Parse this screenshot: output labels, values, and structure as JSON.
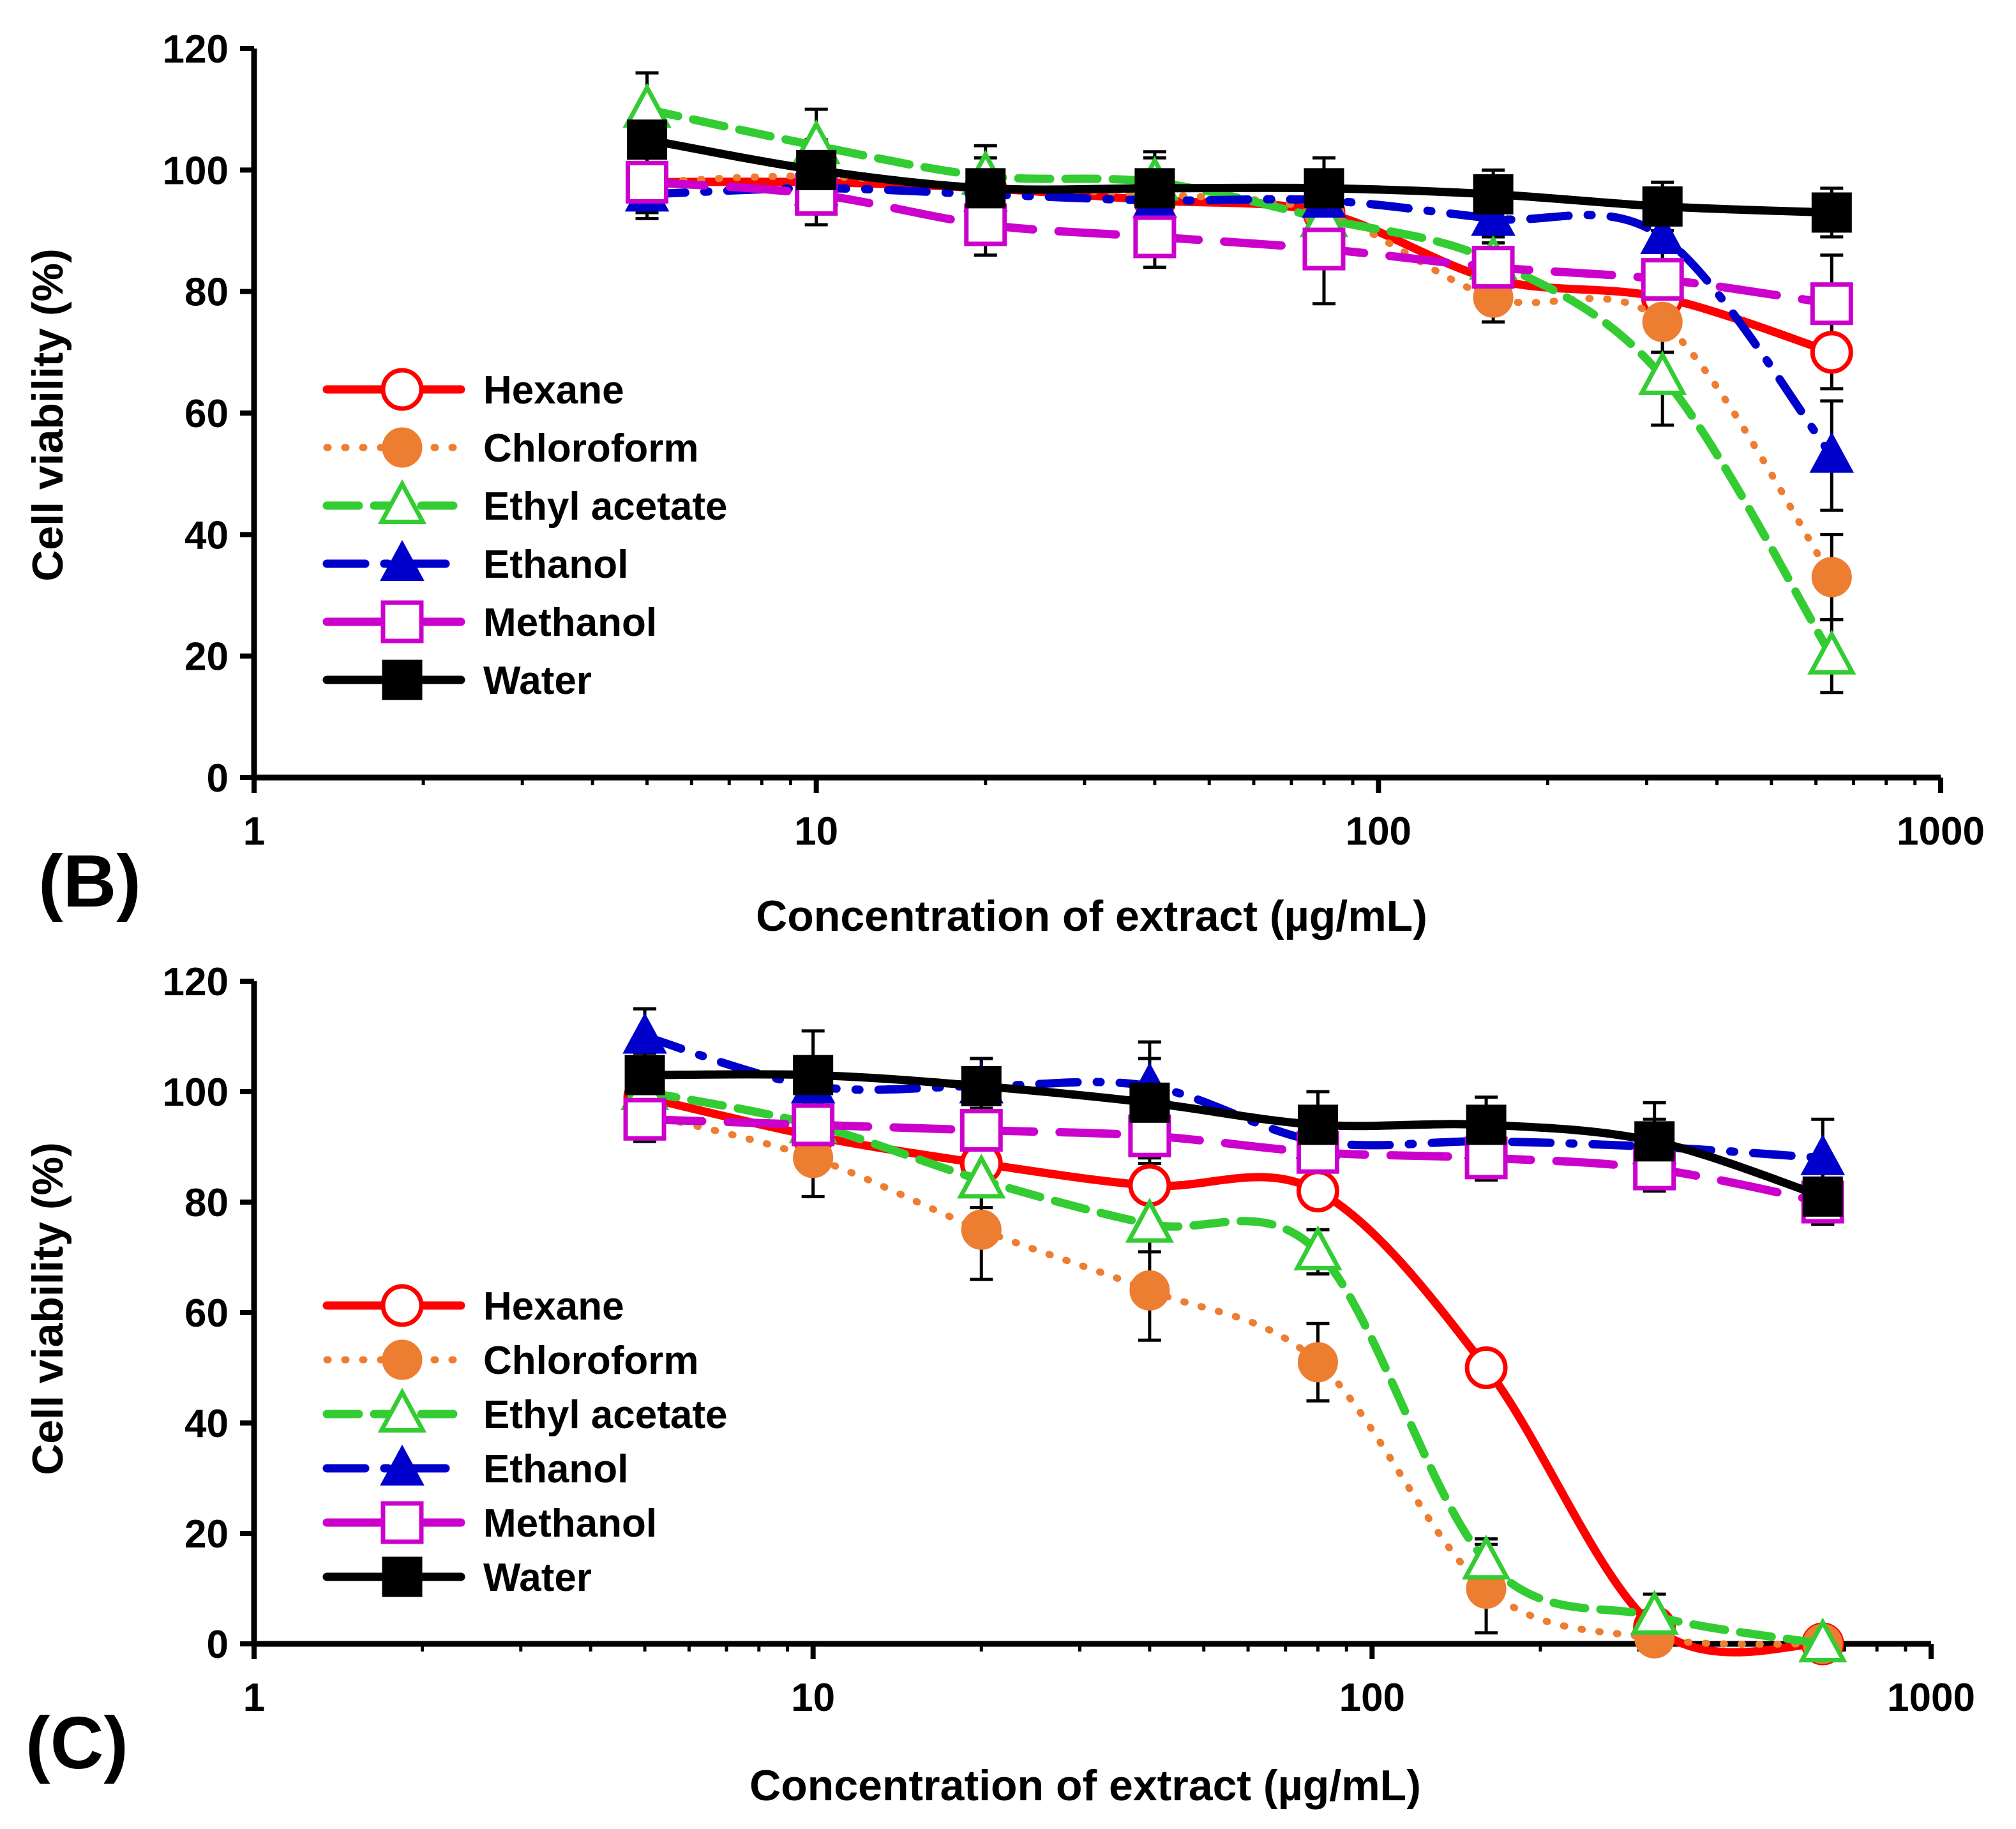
{
  "chart_data": [
    {
      "type": "line",
      "panel_label": "(B)",
      "xlabel": "Concentration of extract (µg/mL)",
      "ylabel": "Cell viability (%)",
      "xscale": "log",
      "xlim": [
        1,
        1000
      ],
      "ylim": [
        0,
        120
      ],
      "xticks": [
        "1",
        "10",
        "100",
        "1000"
      ],
      "yticks": [
        "0",
        "20",
        "40",
        "60",
        "80",
        "100",
        "120"
      ],
      "legend_position": "center-left",
      "x": [
        5,
        10,
        20,
        40,
        80,
        160,
        320,
        640
      ],
      "series": [
        {
          "name": "Hexane",
          "values": [
            98,
            98,
            97,
            95,
            93,
            82,
            79,
            70
          ],
          "errors": [
            3,
            3,
            3,
            3,
            3,
            4,
            4,
            6
          ],
          "color": "#ff0000",
          "marker": "circle-open",
          "dash": "solid"
        },
        {
          "name": "Chloroform",
          "values": [
            98,
            99,
            97,
            96,
            93,
            79,
            75,
            33
          ],
          "errors": [
            3,
            3,
            3,
            3,
            3,
            4,
            5,
            7
          ],
          "color": "#ed7d31",
          "marker": "circle-filled",
          "dash": "dotted"
        },
        {
          "name": "Ethyl acetate",
          "values": [
            110,
            104,
            99,
            98,
            92,
            85,
            66,
            20
          ],
          "errors": [
            6,
            6,
            5,
            5,
            5,
            5,
            8,
            6
          ],
          "color": "#33cc33",
          "marker": "triangle-open",
          "dash": "dashed"
        },
        {
          "name": "Ethanol",
          "values": [
            96,
            97,
            96,
            95,
            95,
            92,
            89,
            53
          ],
          "errors": [
            4,
            4,
            4,
            4,
            4,
            4,
            5,
            9
          ],
          "color": "#0000cc",
          "marker": "triangle-filled",
          "dash": "dashdot"
        },
        {
          "name": "Methanol",
          "values": [
            98,
            96,
            91,
            89,
            87,
            84,
            82,
            78
          ],
          "errors": [
            5,
            5,
            5,
            5,
            9,
            5,
            5,
            8
          ],
          "color": "#cc00cc",
          "marker": "square-open",
          "dash": "longdash"
        },
        {
          "name": "Water",
          "values": [
            105,
            100,
            97,
            97,
            97,
            96,
            94,
            93
          ],
          "errors": [
            5,
            5,
            5,
            5,
            5,
            4,
            4,
            4
          ],
          "color": "#000000",
          "marker": "square-filled",
          "dash": "solid"
        }
      ]
    },
    {
      "type": "line",
      "panel_label": "(C)",
      "xlabel": "Concentration of extract (µg/mL)",
      "ylabel": "Cell viability (%)",
      "xscale": "log",
      "xlim": [
        1,
        1000
      ],
      "ylim": [
        0,
        120
      ],
      "xticks": [
        "1",
        "10",
        "100",
        "1000"
      ],
      "yticks": [
        "0",
        "20",
        "40",
        "60",
        "80",
        "100",
        "120"
      ],
      "legend_position": "lower-left",
      "x": [
        5,
        10,
        20,
        40,
        80,
        160,
        320,
        640
      ],
      "series": [
        {
          "name": "Hexane",
          "values": [
            99,
            92,
            87,
            83,
            82,
            50,
            3,
            0
          ],
          "errors": [
            4,
            4,
            3,
            3,
            3,
            3,
            2,
            0
          ],
          "color": "#ff0000",
          "marker": "circle-open",
          "dash": "solid"
        },
        {
          "name": "Chloroform",
          "values": [
            96,
            88,
            75,
            64,
            51,
            10,
            1,
            0
          ],
          "errors": [
            4,
            7,
            9,
            9,
            7,
            8,
            1,
            0
          ],
          "color": "#ed7d31",
          "marker": "circle-filled",
          "dash": "dotted"
        },
        {
          "name": "Ethyl acetate",
          "values": [
            100,
            94,
            84,
            76,
            71,
            15,
            5,
            0
          ],
          "errors": [
            4,
            5,
            5,
            5,
            4,
            4,
            4,
            0
          ],
          "color": "#33cc33",
          "marker": "triangle-open",
          "dash": "dashed"
        },
        {
          "name": "Ethanol",
          "values": [
            110,
            101,
            101,
            101,
            91,
            91,
            90,
            88
          ],
          "errors": [
            5,
            5,
            5,
            5,
            5,
            5,
            5,
            7
          ],
          "color": "#0000cc",
          "marker": "triangle-filled",
          "dash": "dashdot"
        },
        {
          "name": "Methanol",
          "values": [
            95,
            94,
            93,
            92,
            89,
            88,
            86,
            80
          ],
          "errors": [
            4,
            4,
            4,
            4,
            4,
            4,
            4,
            4
          ],
          "color": "#cc00cc",
          "marker": "square-open",
          "dash": "longdash"
        },
        {
          "name": "Water",
          "values": [
            103,
            103,
            101,
            98,
            94,
            94,
            91,
            81
          ],
          "errors": [
            4,
            8,
            5,
            11,
            6,
            5,
            7,
            5
          ],
          "color": "#000000",
          "marker": "square-filled",
          "dash": "solid"
        }
      ]
    }
  ]
}
